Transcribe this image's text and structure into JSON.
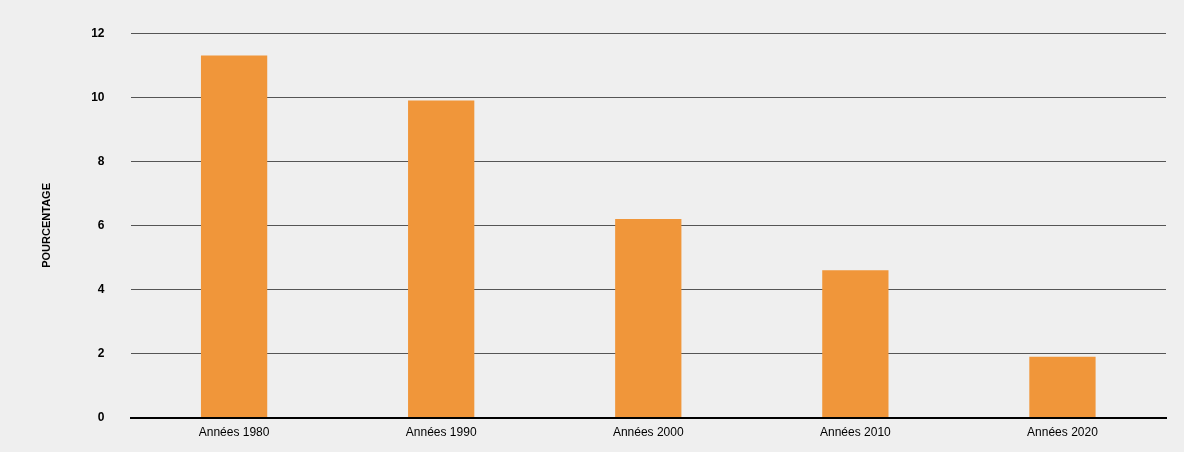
{
  "chart_data": {
    "type": "bar",
    "ylabel": "POURCENTAGE",
    "categories": [
      "Années 1980",
      "Années 1990",
      "Années 2000",
      "Années 2010",
      "Années 2020"
    ],
    "values": [
      11.3,
      9.9,
      6.2,
      4.6,
      1.9
    ],
    "color": "#f0963a",
    "ylim": [
      0,
      12
    ],
    "yticks": [
      0,
      2,
      4,
      6,
      8,
      10,
      12
    ],
    "grid": "y",
    "legend": false
  }
}
